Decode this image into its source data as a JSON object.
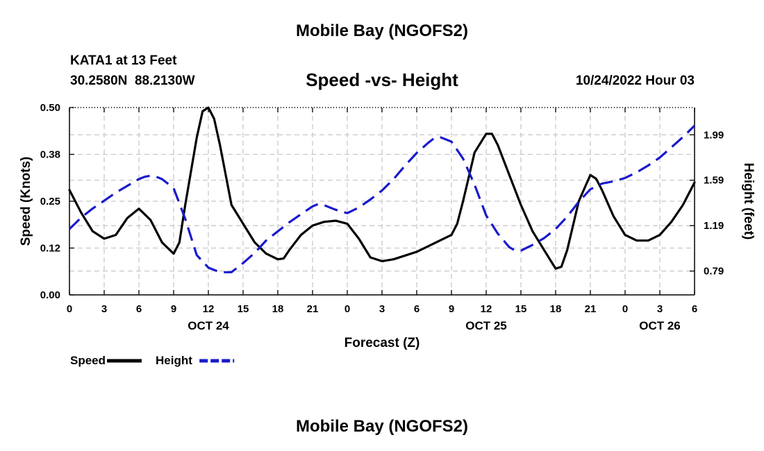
{
  "chart_data": {
    "type": "line",
    "title": "Mobile Bay (NGOFS2)",
    "subtitle": "Speed -vs- Height",
    "station": "KATA1 at 13 Feet",
    "coords": "30.2580N  88.2130W",
    "datetime": "10/24/2022 Hour 03",
    "footer_title": "Mobile Bay (NGOFS2)",
    "xlabel": "Forecast (Z)",
    "ylabel_left": "Speed (Knots)",
    "ylabel_right": "Height (feet)",
    "x_range": [
      0,
      54
    ],
    "ylim_left": [
      0,
      0.5
    ],
    "ylim_right": [
      0.58,
      2.23
    ],
    "grid": true,
    "x_ticks": [
      {
        "x": 0,
        "label": "0"
      },
      {
        "x": 3,
        "label": "3"
      },
      {
        "x": 6,
        "label": "6"
      },
      {
        "x": 9,
        "label": "9"
      },
      {
        "x": 12,
        "label": "12"
      },
      {
        "x": 15,
        "label": "15"
      },
      {
        "x": 18,
        "label": "18"
      },
      {
        "x": 21,
        "label": "21"
      },
      {
        "x": 24,
        "label": "0"
      },
      {
        "x": 27,
        "label": "3"
      },
      {
        "x": 30,
        "label": "6"
      },
      {
        "x": 33,
        "label": "9"
      },
      {
        "x": 36,
        "label": "12"
      },
      {
        "x": 39,
        "label": "15"
      },
      {
        "x": 42,
        "label": "18"
      },
      {
        "x": 45,
        "label": "21"
      },
      {
        "x": 48,
        "label": "0"
      },
      {
        "x": 51,
        "label": "3"
      },
      {
        "x": 54,
        "label": "6"
      }
    ],
    "day_labels": [
      {
        "x": 12,
        "label": "OCT 24"
      },
      {
        "x": 36,
        "label": "OCT 25"
      },
      {
        "x": 51,
        "label": "OCT 26"
      }
    ],
    "y_ticks_left": [
      {
        "v": 0.0,
        "label": "0.00"
      },
      {
        "v": 0.125,
        "label": "0.12"
      },
      {
        "v": 0.25,
        "label": "0.25"
      },
      {
        "v": 0.375,
        "label": "0.38"
      },
      {
        "v": 0.5,
        "label": "0.50"
      }
    ],
    "y_ticks_right": [
      {
        "v": 0.79,
        "label": "0.79"
      },
      {
        "v": 1.19,
        "label": "1.19"
      },
      {
        "v": 1.59,
        "label": "1.59"
      },
      {
        "v": 1.99,
        "label": "1.99"
      }
    ],
    "legend": [
      {
        "name": "Speed",
        "color": "#000000",
        "style": "solid"
      },
      {
        "name": "Height",
        "color": "#1a1acc",
        "style": "dashed"
      }
    ],
    "series": [
      {
        "name": "Speed",
        "axis": "left",
        "color": "#000000",
        "style": "solid",
        "x": [
          0,
          1,
          2,
          3,
          4,
          5,
          6,
          7,
          8,
          9,
          9.5,
          10,
          11,
          11.5,
          12,
          12.5,
          13,
          14,
          15,
          16,
          17,
          18,
          18.5,
          19,
          20,
          21,
          22,
          23,
          24,
          25,
          26,
          27,
          28,
          29,
          30,
          31,
          32,
          33,
          33.5,
          34,
          35,
          36,
          36.5,
          37,
          38,
          39,
          40,
          41,
          42,
          42.5,
          43,
          44,
          45,
          45.5,
          46,
          47,
          48,
          49,
          50,
          51,
          52,
          53,
          54
        ],
        "y": [
          0.28,
          0.22,
          0.17,
          0.15,
          0.16,
          0.205,
          0.23,
          0.2,
          0.14,
          0.11,
          0.14,
          0.24,
          0.42,
          0.49,
          0.5,
          0.47,
          0.4,
          0.24,
          0.19,
          0.14,
          0.11,
          0.095,
          0.097,
          0.12,
          0.16,
          0.185,
          0.195,
          0.198,
          0.19,
          0.15,
          0.1,
          0.09,
          0.095,
          0.105,
          0.115,
          0.13,
          0.145,
          0.16,
          0.19,
          0.25,
          0.38,
          0.43,
          0.43,
          0.4,
          0.32,
          0.24,
          0.17,
          0.12,
          0.07,
          0.075,
          0.12,
          0.25,
          0.32,
          0.31,
          0.28,
          0.21,
          0.16,
          0.145,
          0.145,
          0.16,
          0.195,
          0.24,
          0.3
        ]
      },
      {
        "name": "Height",
        "axis": "right",
        "color": "#1a1acc",
        "style": "dashed",
        "x": [
          0,
          1,
          2,
          3,
          4,
          5,
          6,
          6.5,
          7,
          7.5,
          8,
          9,
          10,
          11,
          12,
          13,
          14,
          15,
          16,
          17,
          18,
          19,
          20,
          21,
          21.5,
          22,
          23,
          24,
          25,
          26,
          27,
          28,
          29,
          30,
          31,
          31.5,
          32,
          33,
          34,
          35,
          36,
          37,
          38,
          38.5,
          39,
          40,
          41,
          42,
          43,
          44,
          45,
          46,
          47,
          48,
          49,
          50,
          51,
          52,
          53,
          54
        ],
        "y": [
          1.16,
          1.26,
          1.34,
          1.41,
          1.48,
          1.54,
          1.6,
          1.62,
          1.63,
          1.62,
          1.6,
          1.52,
          1.25,
          0.93,
          0.82,
          0.78,
          0.78,
          0.86,
          0.95,
          1.06,
          1.14,
          1.22,
          1.29,
          1.36,
          1.38,
          1.37,
          1.33,
          1.3,
          1.35,
          1.42,
          1.5,
          1.6,
          1.72,
          1.83,
          1.92,
          1.96,
          1.97,
          1.93,
          1.78,
          1.55,
          1.28,
          1.12,
          1.0,
          0.97,
          0.97,
          1.02,
          1.08,
          1.16,
          1.27,
          1.4,
          1.51,
          1.56,
          1.58,
          1.61,
          1.66,
          1.72,
          1.79,
          1.88,
          1.97,
          2.07
        ]
      }
    ]
  }
}
